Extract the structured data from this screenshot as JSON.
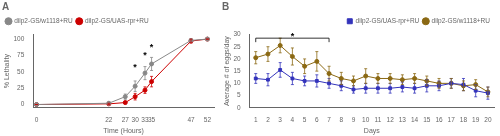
{
  "chart_data": [
    {
      "type": "line",
      "title": "A",
      "xlabel": "Time (Hours)",
      "ylabel": "% Lethality",
      "x": [
        0,
        22,
        27,
        30,
        33,
        35,
        47,
        52
      ],
      "xlim": [
        -1,
        54
      ],
      "ylim": [
        -5,
        107
      ],
      "xticks": [
        0,
        22,
        27,
        30,
        33,
        35,
        47,
        52
      ],
      "yticks": [
        0,
        25,
        50,
        75,
        100
      ],
      "grid": false,
      "legend": "upper left",
      "series": [
        {
          "name": "dilp2-GS/w1118+RU",
          "color": "#888888",
          "marker": "circle",
          "values": [
            0,
            2,
            12,
            28,
            48,
            62,
            98,
            100
          ],
          "errors": [
            0,
            1,
            4,
            8,
            10,
            10,
            2,
            0
          ]
        },
        {
          "name": "dilp2-GS/UAS-rpr+RU",
          "color": "#cc0000",
          "marker": "circle",
          "values": [
            0,
            1,
            3,
            12,
            22,
            35,
            97,
            100
          ],
          "errors": [
            0,
            1,
            2,
            5,
            5,
            8,
            3,
            0
          ]
        }
      ],
      "annotations": [
        {
          "text": "*",
          "x": 30,
          "y": 55
        },
        {
          "text": "*",
          "x": 33,
          "y": 72
        },
        {
          "text": "*",
          "x": 35,
          "y": 85
        }
      ]
    },
    {
      "type": "line",
      "title": "B",
      "xlabel": "Days",
      "ylabel": "Average # of eggs/day",
      "x": [
        1,
        2,
        3,
        4,
        5,
        6,
        7,
        8,
        9,
        10,
        11,
        12,
        13,
        14,
        15,
        16,
        17,
        18,
        19,
        20
      ],
      "xlim": [
        0.5,
        20.5
      ],
      "ylim": [
        0,
        30
      ],
      "xticks": [
        1,
        2,
        3,
        4,
        5,
        6,
        7,
        8,
        9,
        10,
        11,
        12,
        13,
        14,
        15,
        16,
        17,
        18,
        19,
        20
      ],
      "yticks": [
        0,
        5,
        10,
        15,
        20,
        25,
        30
      ],
      "grid": false,
      "legend": "upper right",
      "series": [
        {
          "name": "dilp2-GS/UAS-rpr+RU",
          "color": "#3333bb",
          "marker": "square",
          "values": [
            12,
            11.5,
            15.5,
            12,
            11,
            11,
            10,
            9,
            7.5,
            8,
            8,
            8,
            8.5,
            8,
            9,
            9,
            10,
            9.5,
            7,
            6
          ],
          "errors": [
            2,
            2.5,
            3,
            2.5,
            2,
            2.5,
            2,
            2,
            1.5,
            2,
            2,
            2,
            2,
            2,
            2.5,
            2,
            2,
            2.5,
            2.5,
            2.5
          ]
        },
        {
          "name": "dilp2-GS/w1118+RU",
          "color": "#8B6914",
          "marker": "circle",
          "values": [
            20.5,
            22,
            25.5,
            21,
            17,
            19,
            14,
            12,
            11,
            13,
            12,
            12,
            11.5,
            12,
            11,
            10,
            10,
            9,
            9.5,
            6.5
          ],
          "errors": [
            2.5,
            3,
            3,
            3.5,
            3,
            4,
            3,
            2.5,
            2,
            3,
            2,
            2,
            2,
            2,
            2,
            2,
            2,
            2,
            2,
            2
          ]
        }
      ],
      "annotations": [
        {
          "text": "*",
          "x1": 1,
          "x2": 7,
          "y": 28.5
        }
      ]
    }
  ]
}
